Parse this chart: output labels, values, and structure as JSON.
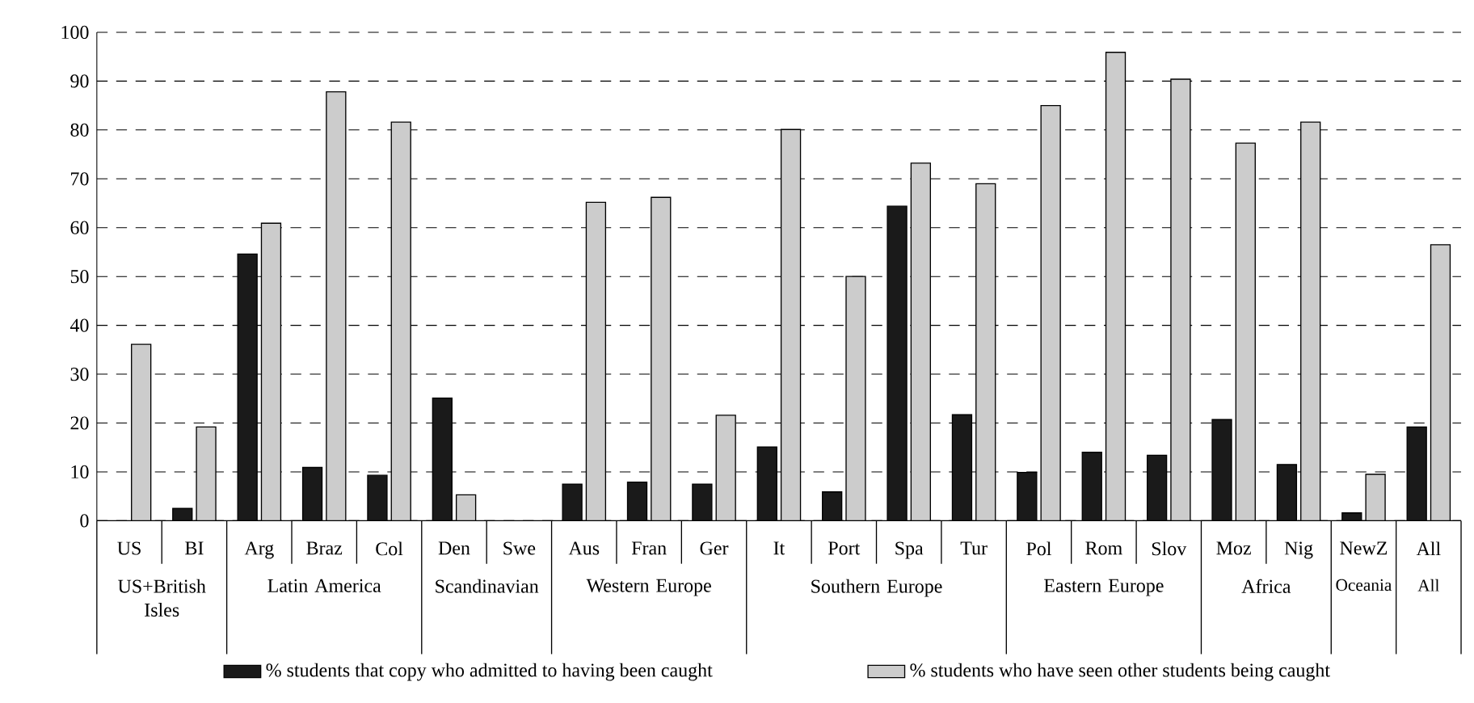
{
  "chart_data": {
    "type": "bar",
    "categories": [
      "US",
      "BI",
      "Arg",
      "Braz",
      "Col",
      "Den",
      "Swe",
      "Aus",
      "Fran",
      "Ger",
      "It",
      "Port",
      "Spa",
      "Tur",
      "Pol",
      "Rom",
      "Slov",
      "Moz",
      "Nig",
      "NewZ",
      "All"
    ],
    "series": [
      {
        "name": "% students that copy who admitted to having been caught",
        "color": "#1a1a1a",
        "values": [
          null,
          2.5,
          54.6,
          10.9,
          9.3,
          25.1,
          null,
          7.5,
          7.9,
          7.5,
          15.1,
          5.9,
          64.4,
          21.7,
          9.9,
          14,
          13.4,
          20.7,
          11.5,
          1.6,
          19.2
        ]
      },
      {
        "name": "% students who have seen other students being caught",
        "color": "#cccccc",
        "values": [
          36.1,
          19.2,
          60.9,
          87.8,
          81.6,
          5.3,
          null,
          65.2,
          66.2,
          21.6,
          80.1,
          50,
          73.2,
          69,
          85,
          95.9,
          90.4,
          77.3,
          81.6,
          9.5,
          56.5
        ]
      }
    ],
    "annotations": [
      "US+British Isles",
      "Latin America",
      "Scandinavian",
      "Western Europe",
      "Southern Europe",
      "Eastern Europe",
      "Africa",
      "Oceania",
      "All"
    ],
    "ylim": [
      0,
      100
    ],
    "yticks": [
      0,
      10,
      20,
      30,
      40,
      50,
      60,
      70,
      80,
      90,
      100
    ],
    "grid": "y",
    "legend": "bottom"
  }
}
